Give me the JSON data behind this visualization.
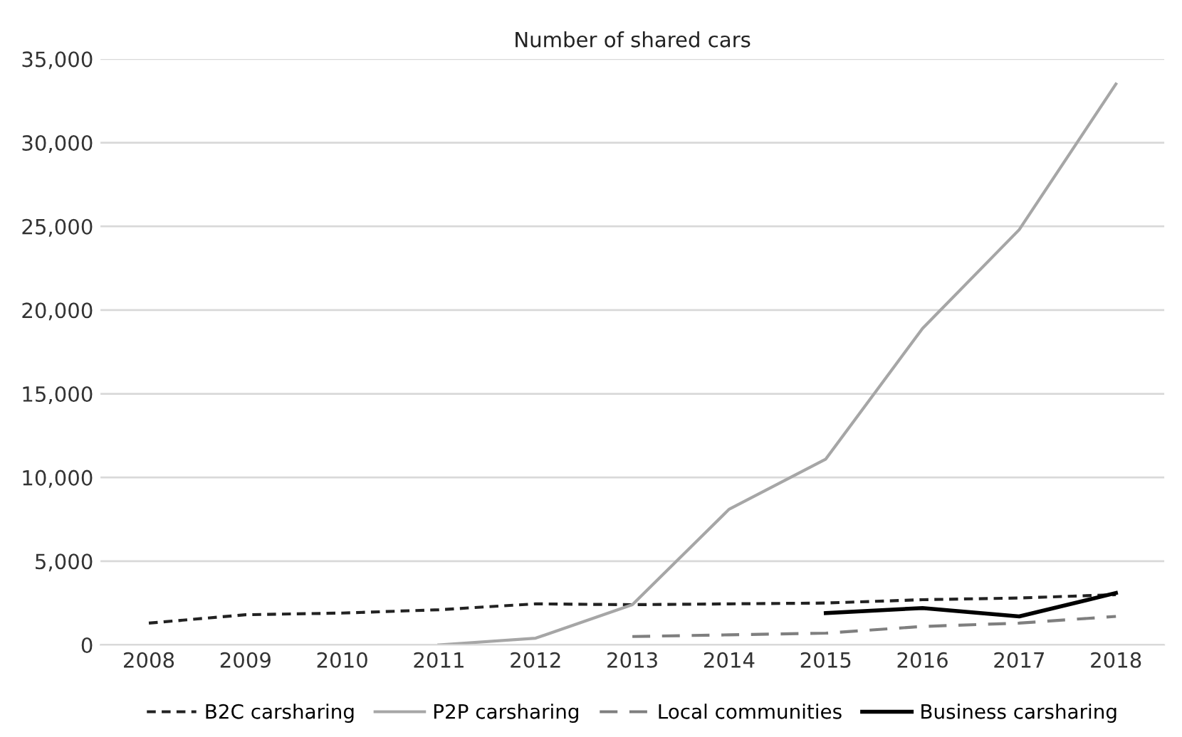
{
  "chart_data": {
    "type": "line",
    "title": "Number of shared cars",
    "categories": [
      "2008",
      "2009",
      "2010",
      "2011",
      "2012",
      "2013",
      "2014",
      "2015",
      "2016",
      "2017",
      "2018"
    ],
    "series": [
      {
        "name": "B2C carsharing",
        "color": "#222222",
        "line_style": "dashed",
        "values": [
          1300,
          1800,
          1900,
          2100,
          2450,
          2400,
          2450,
          2500,
          2700,
          2800,
          3000
        ]
      },
      {
        "name": "P2P carsharing",
        "color": "#a6a6a6",
        "line_style": "solid",
        "values": [
          null,
          null,
          null,
          0,
          400,
          2400,
          8100,
          11100,
          18900,
          24800,
          33500
        ]
      },
      {
        "name": "Local communities",
        "color": "#7f7f7f",
        "line_style": "longdash",
        "values": [
          null,
          null,
          null,
          null,
          null,
          500,
          600,
          700,
          1100,
          1300,
          1700
        ]
      },
      {
        "name": "Business carsharing",
        "color": "#000000",
        "line_style": "solid",
        "values": [
          null,
          null,
          null,
          null,
          null,
          null,
          null,
          1900,
          2200,
          1700,
          3100
        ]
      }
    ],
    "ylim": [
      0,
      35000
    ],
    "yticks": [
      {
        "value": 0,
        "label": "0"
      },
      {
        "value": 5000,
        "label": "5,000"
      },
      {
        "value": 10000,
        "label": "10,000"
      },
      {
        "value": 15000,
        "label": "15,000"
      },
      {
        "value": 20000,
        "label": "20,000"
      },
      {
        "value": 25000,
        "label": "25,000"
      },
      {
        "value": 30000,
        "label": "30,000"
      },
      {
        "value": 35000,
        "label": "35,000"
      }
    ],
    "grid": "y",
    "legend": "bottom",
    "marker": "none"
  }
}
